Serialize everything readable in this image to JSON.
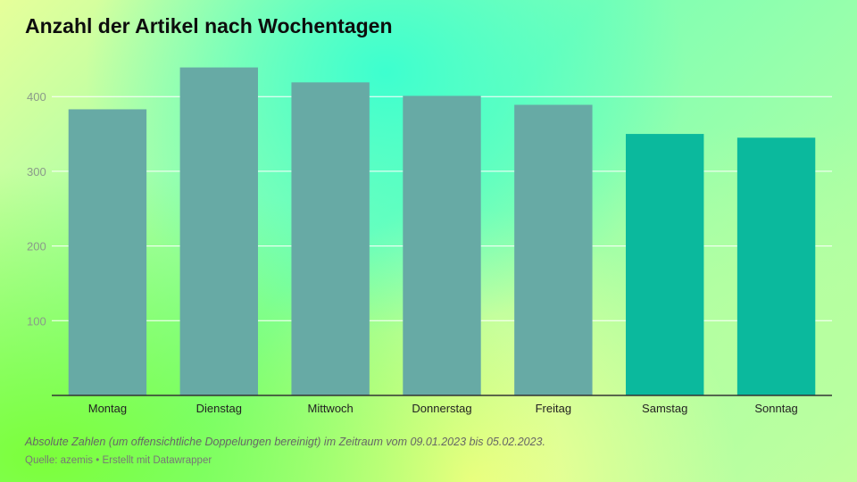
{
  "chart_data": {
    "type": "bar",
    "title": "Anzahl der Artikel nach Wochentagen",
    "categories": [
      "Montag",
      "Dienstag",
      "Mittwoch",
      "Donnerstag",
      "Freitag",
      "Samstag",
      "Sonntag"
    ],
    "values": [
      383,
      439,
      419,
      401,
      389,
      350,
      345
    ],
    "ylim": [
      0,
      460
    ],
    "yticks": [
      100,
      200,
      300,
      400
    ],
    "grid": true,
    "colors": {
      "weekday": "#67aaa5",
      "weekend": "#0bb99d",
      "grid": "#ffffff",
      "axis": "#333333"
    },
    "weekend_categories": [
      "Samstag",
      "Sonntag"
    ]
  },
  "footer": {
    "note": "Absolute Zahlen (um offensichtliche Doppelungen bereinigt) im Zeitraum vom 09.01.2023 bis 05.02.2023.",
    "source": "Quelle: azemis • Erstellt mit Datawrapper"
  }
}
